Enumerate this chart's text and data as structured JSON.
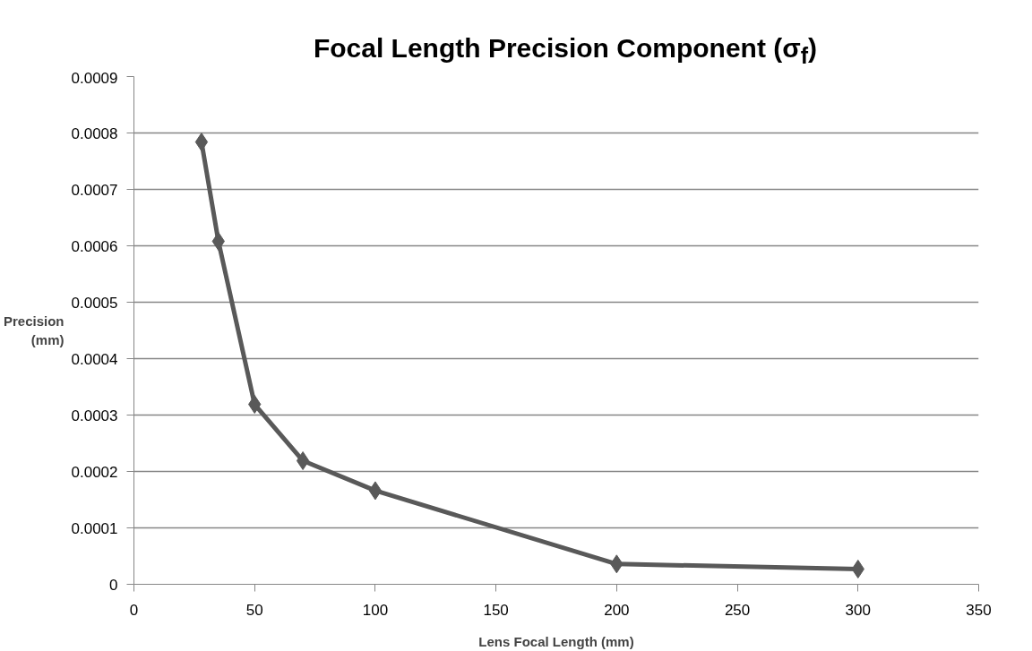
{
  "chart_data": {
    "type": "line",
    "title": "Focal Length Precision Component (σ$_{f}$)",
    "xlabel": "Lens Focal Length (mm)",
    "ylabel": "Precision\n(mm)",
    "x": [
      28,
      35,
      50,
      70,
      100,
      200,
      300
    ],
    "series": [
      {
        "color": "#595959",
        "values": [
          0.000784,
          0.000608,
          0.000319,
          0.000219,
          0.000166,
          3.6e-05,
          2.7e-05
        ]
      }
    ],
    "xlim": [
      0,
      350
    ],
    "xticks": [
      0,
      50,
      100,
      150,
      200,
      250,
      300,
      350
    ],
    "ylim": [
      0,
      0.0009
    ],
    "yticks": [
      0,
      0.0001,
      0.0002,
      0.0003,
      0.0004,
      0.0005,
      0.0006,
      0.0007,
      0.0008,
      0.0009
    ],
    "grid": "y",
    "marker": "diamond",
    "line_style": "solid"
  }
}
